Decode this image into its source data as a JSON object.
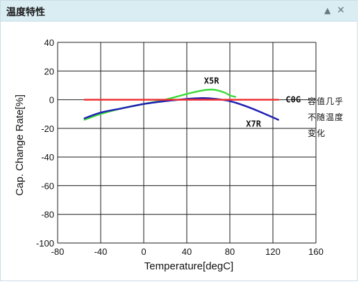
{
  "panel": {
    "title": "温度特性",
    "collapse_icon": "triangle-up-icon",
    "close_icon": "close-icon"
  },
  "chart_data": {
    "type": "line",
    "title": "",
    "xlabel": "Temperature[degC]",
    "ylabel": "Cap. Change Rate[%]",
    "xlim": [
      -80,
      160
    ],
    "ylim": [
      -100,
      40
    ],
    "xticks": [
      -80,
      -40,
      0,
      40,
      80,
      120,
      160
    ],
    "yticks": [
      40,
      20,
      0,
      -20,
      -40,
      -60,
      -80,
      -100
    ],
    "xtick_labels": [
      "-80",
      "-40",
      "0",
      "40",
      "80",
      "120",
      "160"
    ],
    "ytick_labels": [
      "40",
      "20",
      "0",
      "-20",
      "-40",
      "-60",
      "-80",
      "-100"
    ],
    "grid": true,
    "series": [
      {
        "name": "X5R",
        "color": "#3cdc3c",
        "x": [
          -55,
          -40,
          -20,
          0,
          20,
          40,
          55,
          65,
          75,
          80,
          85
        ],
        "y": [
          -14,
          -10,
          -6,
          -3,
          0,
          4,
          6.5,
          7,
          5,
          3,
          2
        ]
      },
      {
        "name": "X7R",
        "color": "#2020b4",
        "x": [
          -55,
          -40,
          -20,
          0,
          20,
          40,
          50,
          60,
          80,
          100,
          125
        ],
        "y": [
          -13,
          -9,
          -6,
          -3,
          -1,
          0.5,
          1,
          1,
          -1,
          -6,
          -14
        ]
      },
      {
        "name": "C0G",
        "color": "#f03030",
        "x": [
          -55,
          125
        ],
        "y": [
          0,
          0
        ]
      }
    ],
    "annotation": [
      "容值几乎",
      "不随温度",
      "变化"
    ]
  }
}
